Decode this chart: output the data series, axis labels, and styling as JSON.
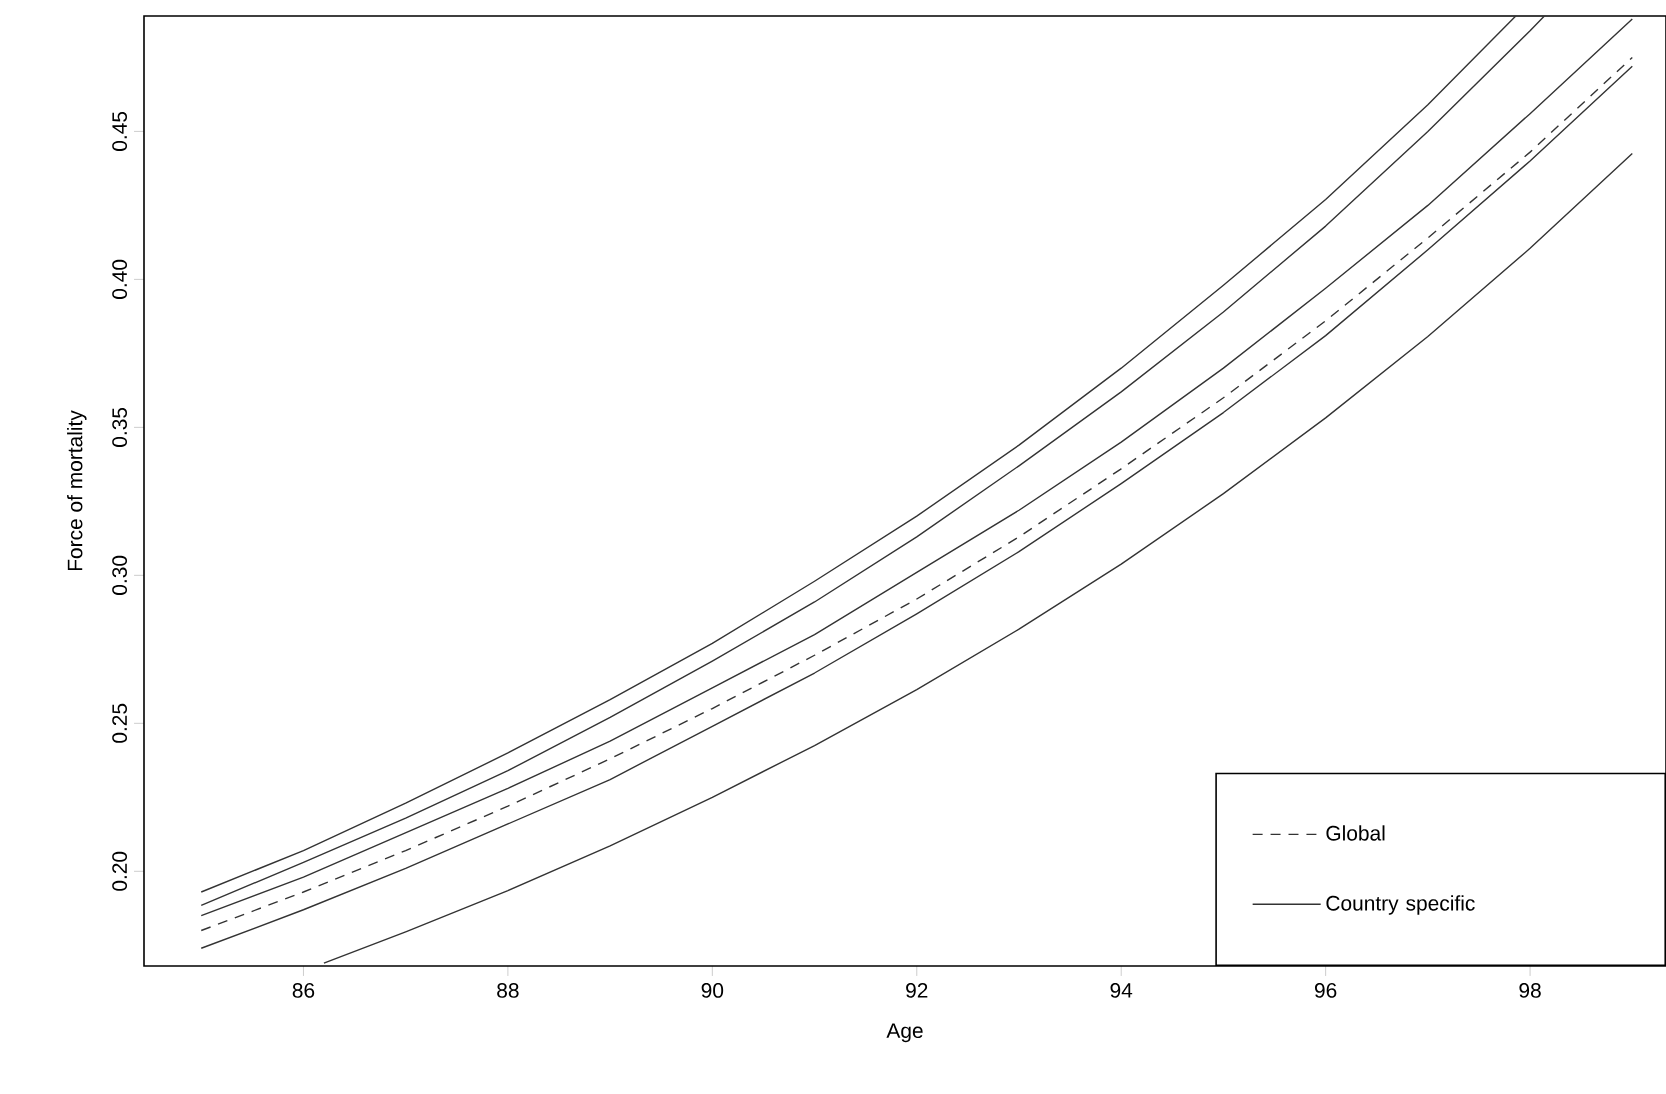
{
  "chart_data": {
    "type": "line",
    "xlabel": "Age",
    "ylabel": "Force of mortality",
    "x": [
      85,
      86,
      87,
      88,
      89,
      90,
      91,
      92,
      93,
      94,
      95,
      96,
      97,
      98,
      99
    ],
    "xlim": [
      84.44,
      99.33
    ],
    "ylim": [
      0.168,
      0.489
    ],
    "xticks": [
      86,
      88,
      90,
      92,
      94,
      96,
      98
    ],
    "yticks": [
      {
        "value": 0.2,
        "label": "0.20"
      },
      {
        "value": 0.25,
        "label": "0.25"
      },
      {
        "value": 0.3,
        "label": "0.30"
      },
      {
        "value": 0.35,
        "label": "0.35"
      },
      {
        "value": 0.4,
        "label": "0.40"
      },
      {
        "value": 0.45,
        "label": "0.45"
      }
    ],
    "legend": "bottom right",
    "marker": "none",
    "series": [
      {
        "name": "Global",
        "color": "#333333",
        "line_style": "dashed",
        "values": [
          0.18,
          0.193,
          0.207,
          0.222,
          0.238,
          0.255,
          0.273,
          0.292,
          0.313,
          0.336,
          0.36,
          0.386,
          0.414,
          0.443,
          0.475
        ]
      },
      {
        "name": "Country specific",
        "color": "#333333",
        "line_style": "solid",
        "values": [
          0.185,
          0.198,
          0.213,
          0.228,
          0.244,
          0.262,
          0.28,
          0.301,
          0.322,
          0.345,
          0.37,
          0.397,
          0.425,
          0.456,
          0.488
        ]
      },
      {
        "color": "#333333",
        "line_style": "solid",
        "x": [
          85,
          86,
          87,
          88,
          89,
          90,
          91,
          92,
          93,
          94,
          95,
          96,
          97,
          97.86
        ],
        "values": [
          0.193,
          0.207,
          0.223,
          0.24,
          0.258,
          0.277,
          0.298,
          0.32,
          0.344,
          0.37,
          0.398,
          0.427,
          0.459,
          0.489
        ]
      },
      {
        "color": "#333333",
        "line_style": "solid",
        "x": [
          85,
          86,
          87,
          88,
          89,
          90,
          91,
          92,
          93,
          94,
          95,
          96,
          97,
          98,
          98.14
        ],
        "values": [
          0.1885,
          0.203,
          0.218,
          0.234,
          0.252,
          0.271,
          0.291,
          0.313,
          0.337,
          0.362,
          0.389,
          0.418,
          0.45,
          0.484,
          0.489
        ]
      },
      {
        "color": "#333333",
        "line_style": "solid",
        "values": [
          0.174,
          0.187,
          0.201,
          0.216,
          0.231,
          0.249,
          0.267,
          0.287,
          0.308,
          0.331,
          0.355,
          0.381,
          0.41,
          0.44,
          0.472
        ]
      },
      {
        "color": "#333333",
        "line_style": "solid",
        "x": [
          86.2,
          87,
          88,
          89,
          90,
          91,
          92,
          93,
          94,
          95,
          96,
          97,
          98,
          99
        ],
        "values": [
          0.169,
          0.1795,
          0.1935,
          0.2086,
          0.225,
          0.2425,
          0.2614,
          0.2818,
          0.3038,
          0.3276,
          0.3532,
          0.3807,
          0.4105,
          0.4425
        ]
      }
    ]
  }
}
